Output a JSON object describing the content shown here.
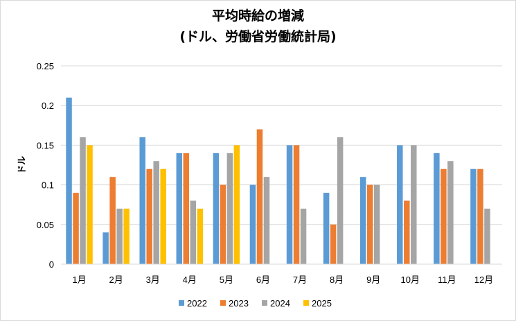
{
  "chart_data": {
    "type": "bar",
    "title_line1": "平均時給の増減",
    "title_line2": "(ドル、労働省労働統計局)",
    "xlabel": "",
    "ylabel": "ドル",
    "ylim": [
      0,
      0.25
    ],
    "yticks": [
      "0",
      "0.05",
      "0.1",
      "0.15",
      "0.2",
      "0.25"
    ],
    "categories": [
      "1月",
      "2月",
      "3月",
      "4月",
      "5月",
      "6月",
      "7月",
      "8月",
      "9月",
      "10月",
      "11月",
      "12月"
    ],
    "grid": "horizontal",
    "legend_position": "bottom",
    "series": [
      {
        "name": "2022",
        "color": "#5b9bd5",
        "values": [
          0.21,
          0.04,
          0.16,
          0.14,
          0.14,
          0.1,
          0.15,
          0.09,
          0.11,
          0.15,
          0.14,
          0.12
        ]
      },
      {
        "name": "2023",
        "color": "#ed7d31",
        "values": [
          0.09,
          0.11,
          0.12,
          0.14,
          0.1,
          0.17,
          0.15,
          0.05,
          0.1,
          0.08,
          0.12,
          0.12
        ]
      },
      {
        "name": "2024",
        "color": "#a5a5a5",
        "values": [
          0.16,
          0.07,
          0.13,
          0.08,
          0.14,
          0.11,
          0.07,
          0.16,
          0.1,
          0.15,
          0.13,
          0.07
        ]
      },
      {
        "name": "2025",
        "color": "#ffc000",
        "values": [
          0.15,
          0.07,
          0.12,
          0.07,
          0.15,
          null,
          null,
          null,
          null,
          null,
          null,
          null
        ]
      }
    ]
  }
}
